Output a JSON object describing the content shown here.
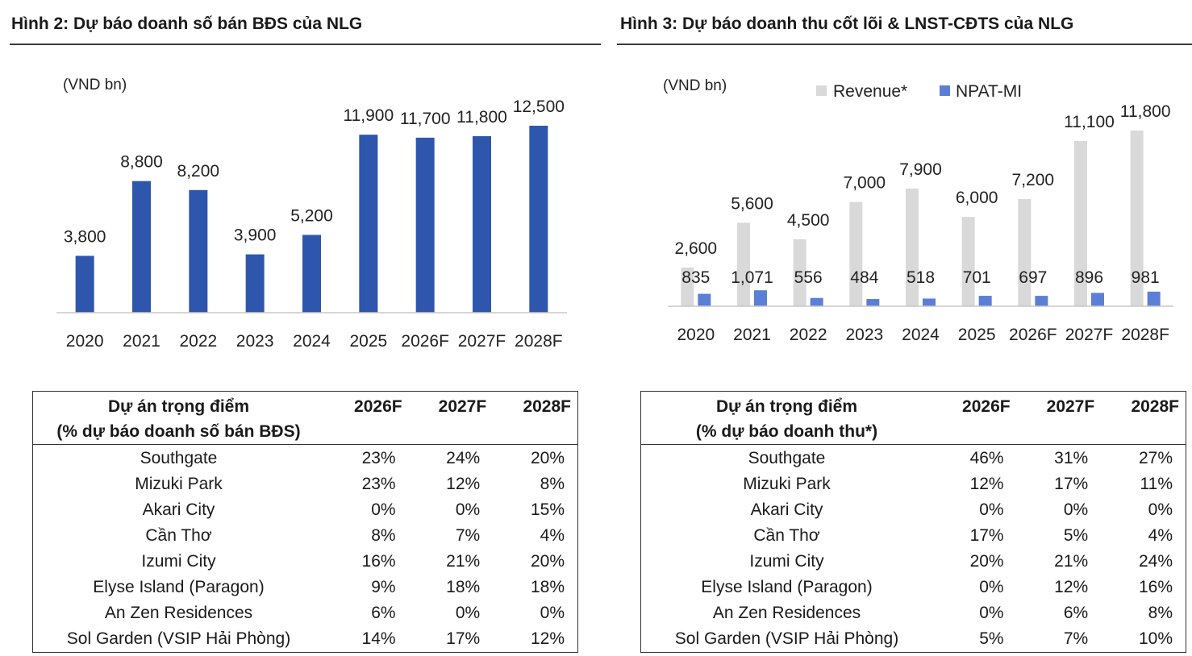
{
  "left": {
    "title": "Hình 2: Dự báo doanh số bán BĐS của NLG",
    "table": {
      "header_line1": "Dự án trọng điểm",
      "header_line2": "(% dự báo doanh số bán BĐS)",
      "years": [
        "2026F",
        "2027F",
        "2028F"
      ],
      "rows": [
        {
          "project": "Southgate",
          "values": [
            "23%",
            "24%",
            "20%"
          ]
        },
        {
          "project": "Mizuki Park",
          "values": [
            "23%",
            "12%",
            "8%"
          ]
        },
        {
          "project": "Akari City",
          "values": [
            "0%",
            "0%",
            "15%"
          ]
        },
        {
          "project": "Cần Thơ",
          "values": [
            "8%",
            "7%",
            "4%"
          ]
        },
        {
          "project": "Izumi City",
          "values": [
            "16%",
            "21%",
            "20%"
          ]
        },
        {
          "project": "Elyse Island (Paragon)",
          "values": [
            "9%",
            "18%",
            "18%"
          ]
        },
        {
          "project": "An Zen Residences",
          "values": [
            "6%",
            "0%",
            "0%"
          ]
        },
        {
          "project": "Sol Garden (VSIP Hải Phòng)",
          "values": [
            "14%",
            "17%",
            "12%"
          ]
        }
      ]
    }
  },
  "right": {
    "title": "Hình 3: Dự báo doanh thu cốt lõi & LNST-CĐTS của NLG",
    "table": {
      "header_line1": "Dự án trọng điểm",
      "header_line2": "(% dự báo doanh thu*)",
      "years": [
        "2026F",
        "2027F",
        "2028F"
      ],
      "rows": [
        {
          "project": "Southgate",
          "values": [
            "46%",
            "31%",
            "27%"
          ]
        },
        {
          "project": "Mizuki Park",
          "values": [
            "12%",
            "17%",
            "11%"
          ]
        },
        {
          "project": "Akari City",
          "values": [
            "0%",
            "0%",
            "0%"
          ]
        },
        {
          "project": "Cần Thơ",
          "values": [
            "17%",
            "5%",
            "4%"
          ]
        },
        {
          "project": "Izumi City",
          "values": [
            "20%",
            "21%",
            "24%"
          ]
        },
        {
          "project": "Elyse Island (Paragon)",
          "values": [
            "0%",
            "12%",
            "16%"
          ]
        },
        {
          "project": "An Zen Residences",
          "values": [
            "0%",
            "6%",
            "8%"
          ]
        },
        {
          "project": "Sol Garden (VSIP Hải Phòng)",
          "values": [
            "5%",
            "7%",
            "10%"
          ]
        }
      ]
    }
  },
  "chart_data": [
    {
      "type": "bar",
      "title": "Hình 2: Dự báo doanh số bán BĐS của NLG",
      "ylabel": "(VND bn)",
      "categories": [
        "2020",
        "2021",
        "2022",
        "2023",
        "2024",
        "2025",
        "2026F",
        "2027F",
        "2028F"
      ],
      "values": [
        3800,
        8800,
        8200,
        3900,
        5200,
        11900,
        11700,
        11800,
        12500
      ],
      "labels": [
        "3,800",
        "8,800",
        "8,200",
        "3,900",
        "5,200",
        "11,900",
        "11,700",
        "11,800",
        "12,500"
      ],
      "ylim": [
        0,
        15000
      ],
      "grid": false,
      "colors": {
        "bar": "#2f56ad",
        "axis": "#c8c8c8"
      }
    },
    {
      "type": "bar",
      "title": "Hình 3: Dự báo doanh thu cốt lõi & LNST-CĐTS của NLG",
      "ylabel": "(VND bn)",
      "categories": [
        "2020",
        "2021",
        "2022",
        "2023",
        "2024",
        "2025",
        "2026F",
        "2027F",
        "2028F"
      ],
      "series": [
        {
          "name": "Revenue*",
          "values": [
            2600,
            5600,
            4500,
            7000,
            7900,
            6000,
            7200,
            11100,
            11800
          ],
          "labels": [
            "2,600",
            "5,600",
            "4,500",
            "7,000",
            "7,900",
            "6,000",
            "7,200",
            "11,100",
            "11,800"
          ]
        },
        {
          "name": "NPAT-MI",
          "values": [
            835,
            1071,
            556,
            484,
            518,
            701,
            697,
            896,
            981
          ],
          "labels": [
            "835",
            "1,071",
            "556",
            "484",
            "518",
            "701",
            "697",
            "896",
            "981"
          ]
        }
      ],
      "ylim": [
        0,
        14000
      ],
      "legend": "top",
      "grid": false,
      "colors": {
        "Revenue*": "#d9d9d9",
        "NPAT-MI": "#5b7fd6",
        "axis": "#c8c8c8"
      }
    }
  ]
}
